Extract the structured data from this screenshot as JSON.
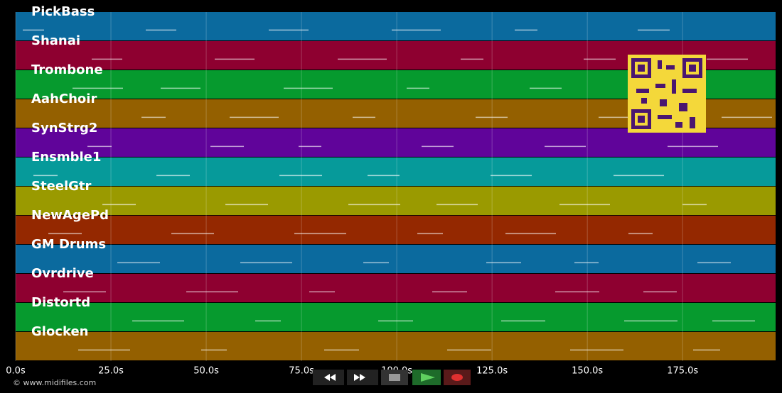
{
  "tracks": [
    {
      "name": "PickBass",
      "color": "#0b6a9e"
    },
    {
      "name": "Shanai",
      "color": "#8e0030"
    },
    {
      "name": "Trombone",
      "color": "#069a2e"
    },
    {
      "name": "AahChoir",
      "color": "#946000"
    },
    {
      "name": "SynStrg2",
      "color": "#60049a"
    },
    {
      "name": "Ensmble1",
      "color": "#069a9a"
    },
    {
      "name": "SteelGtr",
      "color": "#9a9a00"
    },
    {
      "name": "NewAgePd",
      "color": "#942800"
    },
    {
      "name": "GM Drums",
      "color": "#0b6a9e"
    },
    {
      "name": "Ovrdrive",
      "color": "#8e0030"
    },
    {
      "name": "Distortd",
      "color": "#069a2e"
    },
    {
      "name": "Glocken",
      "color": "#946000"
    }
  ],
  "time_axis": {
    "xlim": [
      0,
      199.4
    ],
    "xticks": [
      {
        "value": 0,
        "label": "0.0s"
      },
      {
        "value": 25,
        "label": "25.0s"
      },
      {
        "value": 50,
        "label": "50.0s"
      },
      {
        "value": 75,
        "label": "75.0s"
      },
      {
        "value": 100,
        "label": "100.0s"
      },
      {
        "value": 125,
        "label": "125.0s"
      },
      {
        "value": 150,
        "label": "150.0s"
      },
      {
        "value": 175,
        "label": "175.0s"
      }
    ]
  },
  "footer": {
    "copyright": "© www.midifiles.com"
  }
}
